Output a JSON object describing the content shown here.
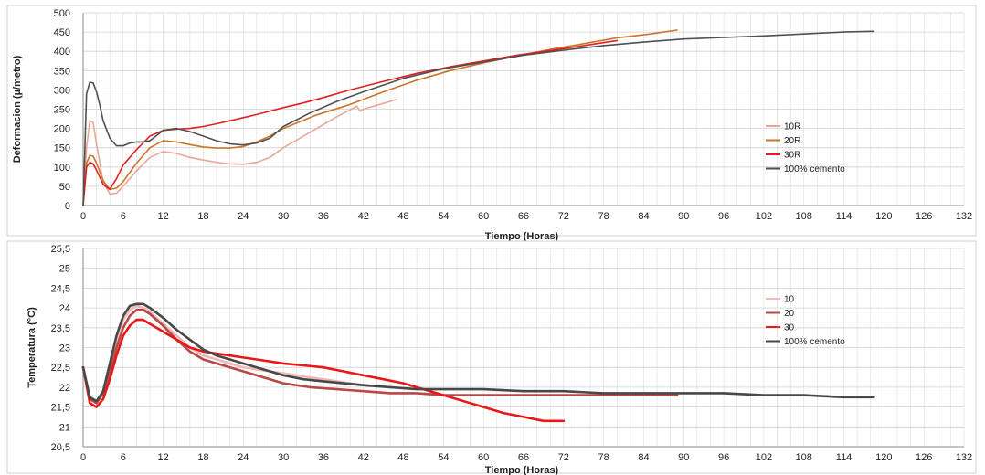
{
  "chart_data": [
    {
      "type": "line",
      "xlabel": "Tiempo (Horas)",
      "ylabel": "Deformacion (µ/metro)",
      "xlim": [
        0,
        132
      ],
      "ylim": [
        0,
        500
      ],
      "xticks": [
        "0",
        "6",
        "12",
        "18",
        "24",
        "30",
        "36",
        "42",
        "48",
        "54",
        "60",
        "66",
        "72",
        "78",
        "84",
        "90",
        "96",
        "102",
        "108",
        "114",
        "120",
        "126",
        "132"
      ],
      "yticks": [
        "0",
        "50",
        "100",
        "150",
        "200",
        "250",
        "300",
        "350",
        "400",
        "450",
        "500"
      ],
      "grid": true,
      "legend_position": "right",
      "series": [
        {
          "name": "10R",
          "color": "#e8a898",
          "x": [
            0,
            0.5,
            1,
            1.5,
            2,
            3,
            4,
            5,
            6,
            8,
            10,
            12,
            14,
            16,
            18,
            20,
            22,
            24,
            26,
            28,
            30,
            32,
            34,
            36,
            38,
            40,
            41,
            41.5,
            42,
            44,
            47
          ],
          "y": [
            0,
            150,
            220,
            215,
            160,
            60,
            30,
            32,
            50,
            90,
            125,
            140,
            135,
            125,
            118,
            112,
            108,
            107,
            112,
            125,
            150,
            170,
            190,
            210,
            230,
            248,
            258,
            245,
            250,
            260,
            275
          ]
        },
        {
          "name": "20R",
          "color": "#c8762a",
          "x": [
            0,
            0.5,
            1,
            1.5,
            2,
            3,
            4,
            5,
            6,
            8,
            10,
            12,
            14,
            16,
            18,
            20,
            22,
            24,
            26,
            28,
            30,
            35,
            40,
            45,
            50,
            55,
            60,
            65,
            70,
            75,
            80,
            85,
            89
          ],
          "y": [
            0,
            110,
            130,
            128,
            110,
            65,
            42,
            45,
            62,
            110,
            150,
            168,
            165,
            158,
            152,
            149,
            149,
            153,
            165,
            180,
            200,
            235,
            262,
            295,
            325,
            350,
            370,
            388,
            405,
            420,
            435,
            445,
            455
          ]
        },
        {
          "name": "30R",
          "color": "#e02020",
          "x": [
            0,
            0.5,
            1,
            1.5,
            2,
            3,
            4,
            5,
            6,
            8,
            10,
            12,
            14,
            16,
            18,
            20,
            22,
            24,
            26,
            28,
            30,
            33,
            36,
            40,
            45,
            50,
            55,
            60,
            65,
            70,
            75,
            80
          ],
          "y": [
            0,
            100,
            112,
            108,
            92,
            55,
            42,
            70,
            105,
            145,
            180,
            195,
            198,
            200,
            205,
            212,
            220,
            228,
            236,
            245,
            254,
            266,
            280,
            300,
            322,
            343,
            360,
            375,
            390,
            402,
            415,
            428
          ]
        },
        {
          "name": "100% cemento",
          "color": "#505050",
          "x": [
            0,
            0.5,
            1,
            1.5,
            2,
            2.5,
            3,
            4,
            5,
            6,
            7,
            8,
            9,
            10,
            12,
            14,
            16,
            18,
            20,
            22,
            24,
            26,
            28,
            30,
            34,
            38,
            42,
            48,
            54,
            60,
            66,
            72,
            78,
            84,
            90,
            96,
            102,
            108,
            114,
            118.5
          ],
          "y": [
            0,
            290,
            320,
            318,
            295,
            260,
            220,
            175,
            155,
            155,
            162,
            165,
            165,
            168,
            195,
            200,
            192,
            180,
            168,
            160,
            157,
            162,
            175,
            205,
            240,
            270,
            295,
            330,
            355,
            372,
            390,
            403,
            415,
            424,
            432,
            436,
            440,
            445,
            450,
            452
          ]
        }
      ]
    },
    {
      "type": "line",
      "xlabel": "Tiempo (Horas)",
      "ylabel": "Temperatura (°C)",
      "xlim": [
        0,
        132
      ],
      "ylim": [
        20.5,
        25.5
      ],
      "xticks": [
        "0",
        "6",
        "12",
        "18",
        "24",
        "30",
        "36",
        "42",
        "48",
        "54",
        "60",
        "66",
        "72",
        "78",
        "84",
        "90",
        "96",
        "102",
        "108",
        "114",
        "120",
        "126",
        "132"
      ],
      "yticks": [
        "20,5",
        "21",
        "21,5",
        "22",
        "22,5",
        "23",
        "23,5",
        "24",
        "24,5",
        "25",
        "25,5"
      ],
      "grid": true,
      "legend_position": "right",
      "series": [
        {
          "name": "10",
          "color": "#f2b8b8",
          "x": [
            0,
            1,
            2,
            3,
            4,
            5,
            6,
            7,
            8,
            9,
            10,
            12,
            14,
            16,
            18,
            20,
            22,
            24,
            26,
            28,
            30,
            32,
            34,
            36,
            38,
            40,
            42
          ],
          "y": [
            22.5,
            21.7,
            21.6,
            21.9,
            22.5,
            23.2,
            23.7,
            23.95,
            24.05,
            24.0,
            23.9,
            23.6,
            23.3,
            23.0,
            22.8,
            22.7,
            22.6,
            22.5,
            22.45,
            22.4,
            22.35,
            22.3,
            22.25,
            22.2,
            22.15,
            22.1,
            22.05
          ]
        },
        {
          "name": "20",
          "color": "#b84848",
          "x": [
            0,
            1,
            2,
            3,
            4,
            5,
            6,
            7,
            8,
            9,
            10,
            12,
            14,
            16,
            18,
            20,
            22,
            24,
            26,
            28,
            30,
            34,
            38,
            42,
            46,
            50,
            54,
            60,
            66,
            72,
            78,
            84,
            89
          ],
          "y": [
            22.5,
            21.7,
            21.6,
            21.85,
            22.4,
            23.0,
            23.5,
            23.8,
            23.95,
            23.95,
            23.85,
            23.55,
            23.2,
            22.9,
            22.7,
            22.6,
            22.5,
            22.4,
            22.3,
            22.2,
            22.1,
            22.0,
            21.95,
            21.9,
            21.85,
            21.85,
            21.8,
            21.8,
            21.8,
            21.8,
            21.8,
            21.8,
            21.8
          ]
        },
        {
          "name": "30",
          "color": "#e81818",
          "x": [
            0,
            1,
            2,
            3,
            4,
            5,
            6,
            7,
            8,
            9,
            10,
            12,
            14,
            16,
            18,
            20,
            22,
            24,
            26,
            28,
            30,
            33,
            36,
            39,
            42,
            45,
            48,
            51,
            54,
            57,
            60,
            63,
            66,
            69,
            72
          ],
          "y": [
            22.5,
            21.6,
            21.5,
            21.7,
            22.2,
            22.8,
            23.3,
            23.55,
            23.7,
            23.7,
            23.6,
            23.4,
            23.2,
            23.0,
            22.9,
            22.85,
            22.8,
            22.75,
            22.7,
            22.65,
            22.6,
            22.55,
            22.5,
            22.4,
            22.3,
            22.2,
            22.1,
            21.95,
            21.8,
            21.65,
            21.5,
            21.35,
            21.25,
            21.15,
            21.15
          ]
        },
        {
          "name": "100% cemento",
          "color": "#484848",
          "x": [
            0,
            1,
            2,
            3,
            4,
            5,
            6,
            7,
            8,
            9,
            10,
            12,
            14,
            16,
            18,
            20,
            22,
            24,
            26,
            28,
            30,
            33,
            36,
            39,
            42,
            46,
            50,
            54,
            60,
            66,
            72,
            78,
            84,
            90,
            96,
            102,
            108,
            114,
            118.5
          ],
          "y": [
            22.5,
            21.75,
            21.65,
            21.9,
            22.6,
            23.3,
            23.8,
            24.05,
            24.1,
            24.1,
            24.0,
            23.75,
            23.45,
            23.2,
            22.95,
            22.8,
            22.7,
            22.6,
            22.5,
            22.4,
            22.3,
            22.2,
            22.15,
            22.1,
            22.05,
            22.0,
            21.95,
            21.95,
            21.95,
            21.9,
            21.9,
            21.85,
            21.85,
            21.85,
            21.85,
            21.8,
            21.8,
            21.75,
            21.75
          ]
        }
      ]
    }
  ]
}
